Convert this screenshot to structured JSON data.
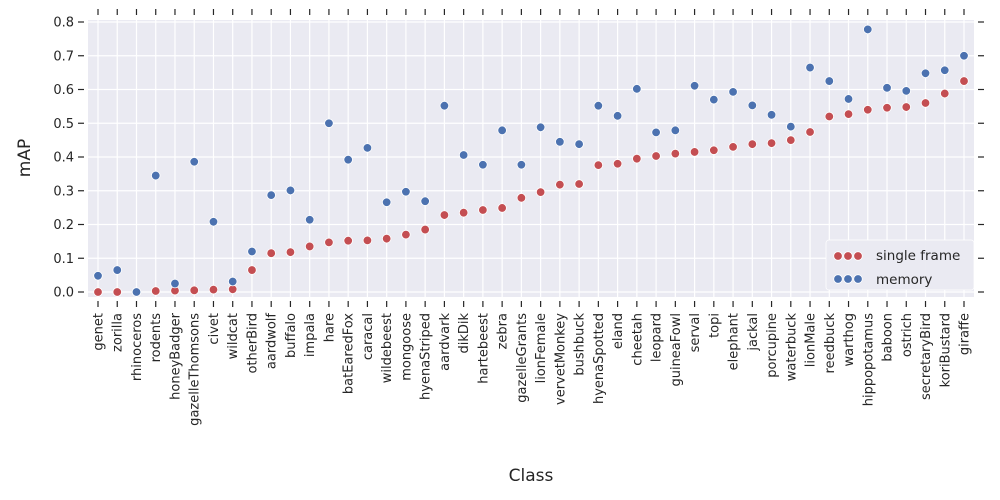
{
  "chart_data": {
    "type": "scatter",
    "xlabel": "Class",
    "ylabel": "mAP",
    "ylim": [
      0,
      0.8
    ],
    "yticks": [
      "0.0",
      "0.1",
      "0.2",
      "0.3",
      "0.4",
      "0.5",
      "0.6",
      "0.7",
      "0.8"
    ],
    "grid": true,
    "legend_position": "lower-right",
    "categories": [
      "genet",
      "zorilla",
      "rhinoceros",
      "rodents",
      "honeyBadger",
      "gazelleThomsons",
      "civet",
      "wildcat",
      "otherBird",
      "aardwolf",
      "buffalo",
      "impala",
      "hare",
      "batEaredFox",
      "caracal",
      "wildebeest",
      "mongoose",
      "hyenaStriped",
      "aardvark",
      "dikDik",
      "hartebeest",
      "zebra",
      "gazelleGrants",
      "lionFemale",
      "vervetMonkey",
      "bushbuck",
      "hyenaSpotted",
      "eland",
      "cheetah",
      "leopard",
      "guineaFowl",
      "serval",
      "topi",
      "elephant",
      "jackal",
      "porcupine",
      "waterbuck",
      "lionMale",
      "reedbuck",
      "warthog",
      "hippopotamus",
      "baboon",
      "ostrich",
      "secretaryBird",
      "koriBustard",
      "giraffe"
    ],
    "series": [
      {
        "name": "single frame",
        "color": "#c44e52",
        "values": [
          0.0,
          0.0,
          0.0,
          0.003,
          0.004,
          0.005,
          0.007,
          0.008,
          0.065,
          0.115,
          0.118,
          0.135,
          0.147,
          0.152,
          0.153,
          0.158,
          0.17,
          0.185,
          0.228,
          0.235,
          0.243,
          0.249,
          0.279,
          0.296,
          0.318,
          0.32,
          0.376,
          0.38,
          0.395,
          0.403,
          0.41,
          0.415,
          0.42,
          0.43,
          0.438,
          0.441,
          0.45,
          0.474,
          0.52,
          0.527,
          0.54,
          0.546,
          0.548,
          0.56,
          0.588,
          0.625
        ]
      },
      {
        "name": "memory",
        "color": "#4c72b0",
        "values": [
          0.048,
          0.065,
          0.0,
          0.345,
          0.025,
          0.386,
          0.208,
          0.031,
          0.12,
          0.287,
          0.301,
          0.214,
          0.5,
          0.392,
          0.427,
          0.266,
          0.297,
          0.269,
          0.552,
          0.406,
          0.377,
          0.479,
          0.377,
          0.488,
          0.445,
          0.438,
          0.552,
          0.522,
          0.602,
          0.473,
          0.479,
          0.611,
          0.57,
          0.593,
          0.553,
          0.525,
          0.49,
          0.665,
          0.625,
          0.572,
          0.778,
          0.605,
          0.596,
          0.648,
          0.657,
          0.7
        ]
      }
    ]
  }
}
